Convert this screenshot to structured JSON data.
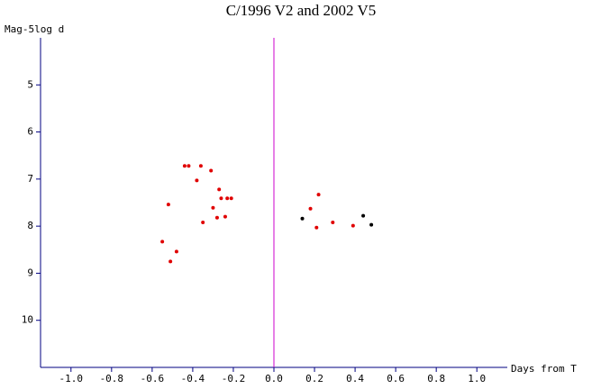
{
  "chart_data": {
    "type": "scatter",
    "title": "C/1996 V2 and 2002 V5",
    "xlabel": "Days from T",
    "ylabel": "Mag-5log d",
    "xlim": [
      -1.15,
      1.15
    ],
    "ylim": [
      11,
      4
    ],
    "xticks": [
      {
        "value": -1.0,
        "label": "-1.0"
      },
      {
        "value": -0.8,
        "label": "-0.8"
      },
      {
        "value": -0.6,
        "label": "-0.6"
      },
      {
        "value": -0.4,
        "label": "-0.4"
      },
      {
        "value": -0.2,
        "label": "-0.2"
      },
      {
        "value": 0,
        "label": "0.0"
      },
      {
        "value": 0.2,
        "label": "0.2"
      },
      {
        "value": 0.4,
        "label": "0.4"
      },
      {
        "value": 0.6,
        "label": "0.6"
      },
      {
        "value": 0.8,
        "label": "0.8"
      },
      {
        "value": 1.0,
        "label": "1.0"
      }
    ],
    "yticks": [
      5,
      6,
      7,
      8,
      9,
      10
    ],
    "axis_color": "#000080",
    "reference_line": {
      "x": 0,
      "color": "#cc00cc"
    },
    "series": [
      {
        "color": "#e00000",
        "x": [
          -0.44,
          -0.42,
          -0.36,
          -0.31,
          -0.38,
          -0.27,
          -0.26,
          -0.23,
          -0.21,
          -0.52,
          -0.3,
          -0.24,
          -0.28,
          -0.35,
          -0.55,
          -0.48,
          -0.51,
          0.22,
          0.18,
          0.29,
          0.21,
          0.39
        ],
        "values": [
          6.72,
          6.72,
          6.72,
          6.82,
          7.03,
          7.22,
          7.41,
          7.41,
          7.41,
          7.54,
          7.61,
          7.8,
          7.82,
          7.92,
          8.33,
          8.54,
          8.75,
          7.33,
          7.63,
          7.92,
          8.03,
          7.99
        ]
      },
      {
        "color": "#000000",
        "x": [
          0.14,
          0.44,
          0.48
        ],
        "values": [
          7.84,
          7.78,
          7.97
        ]
      }
    ]
  }
}
